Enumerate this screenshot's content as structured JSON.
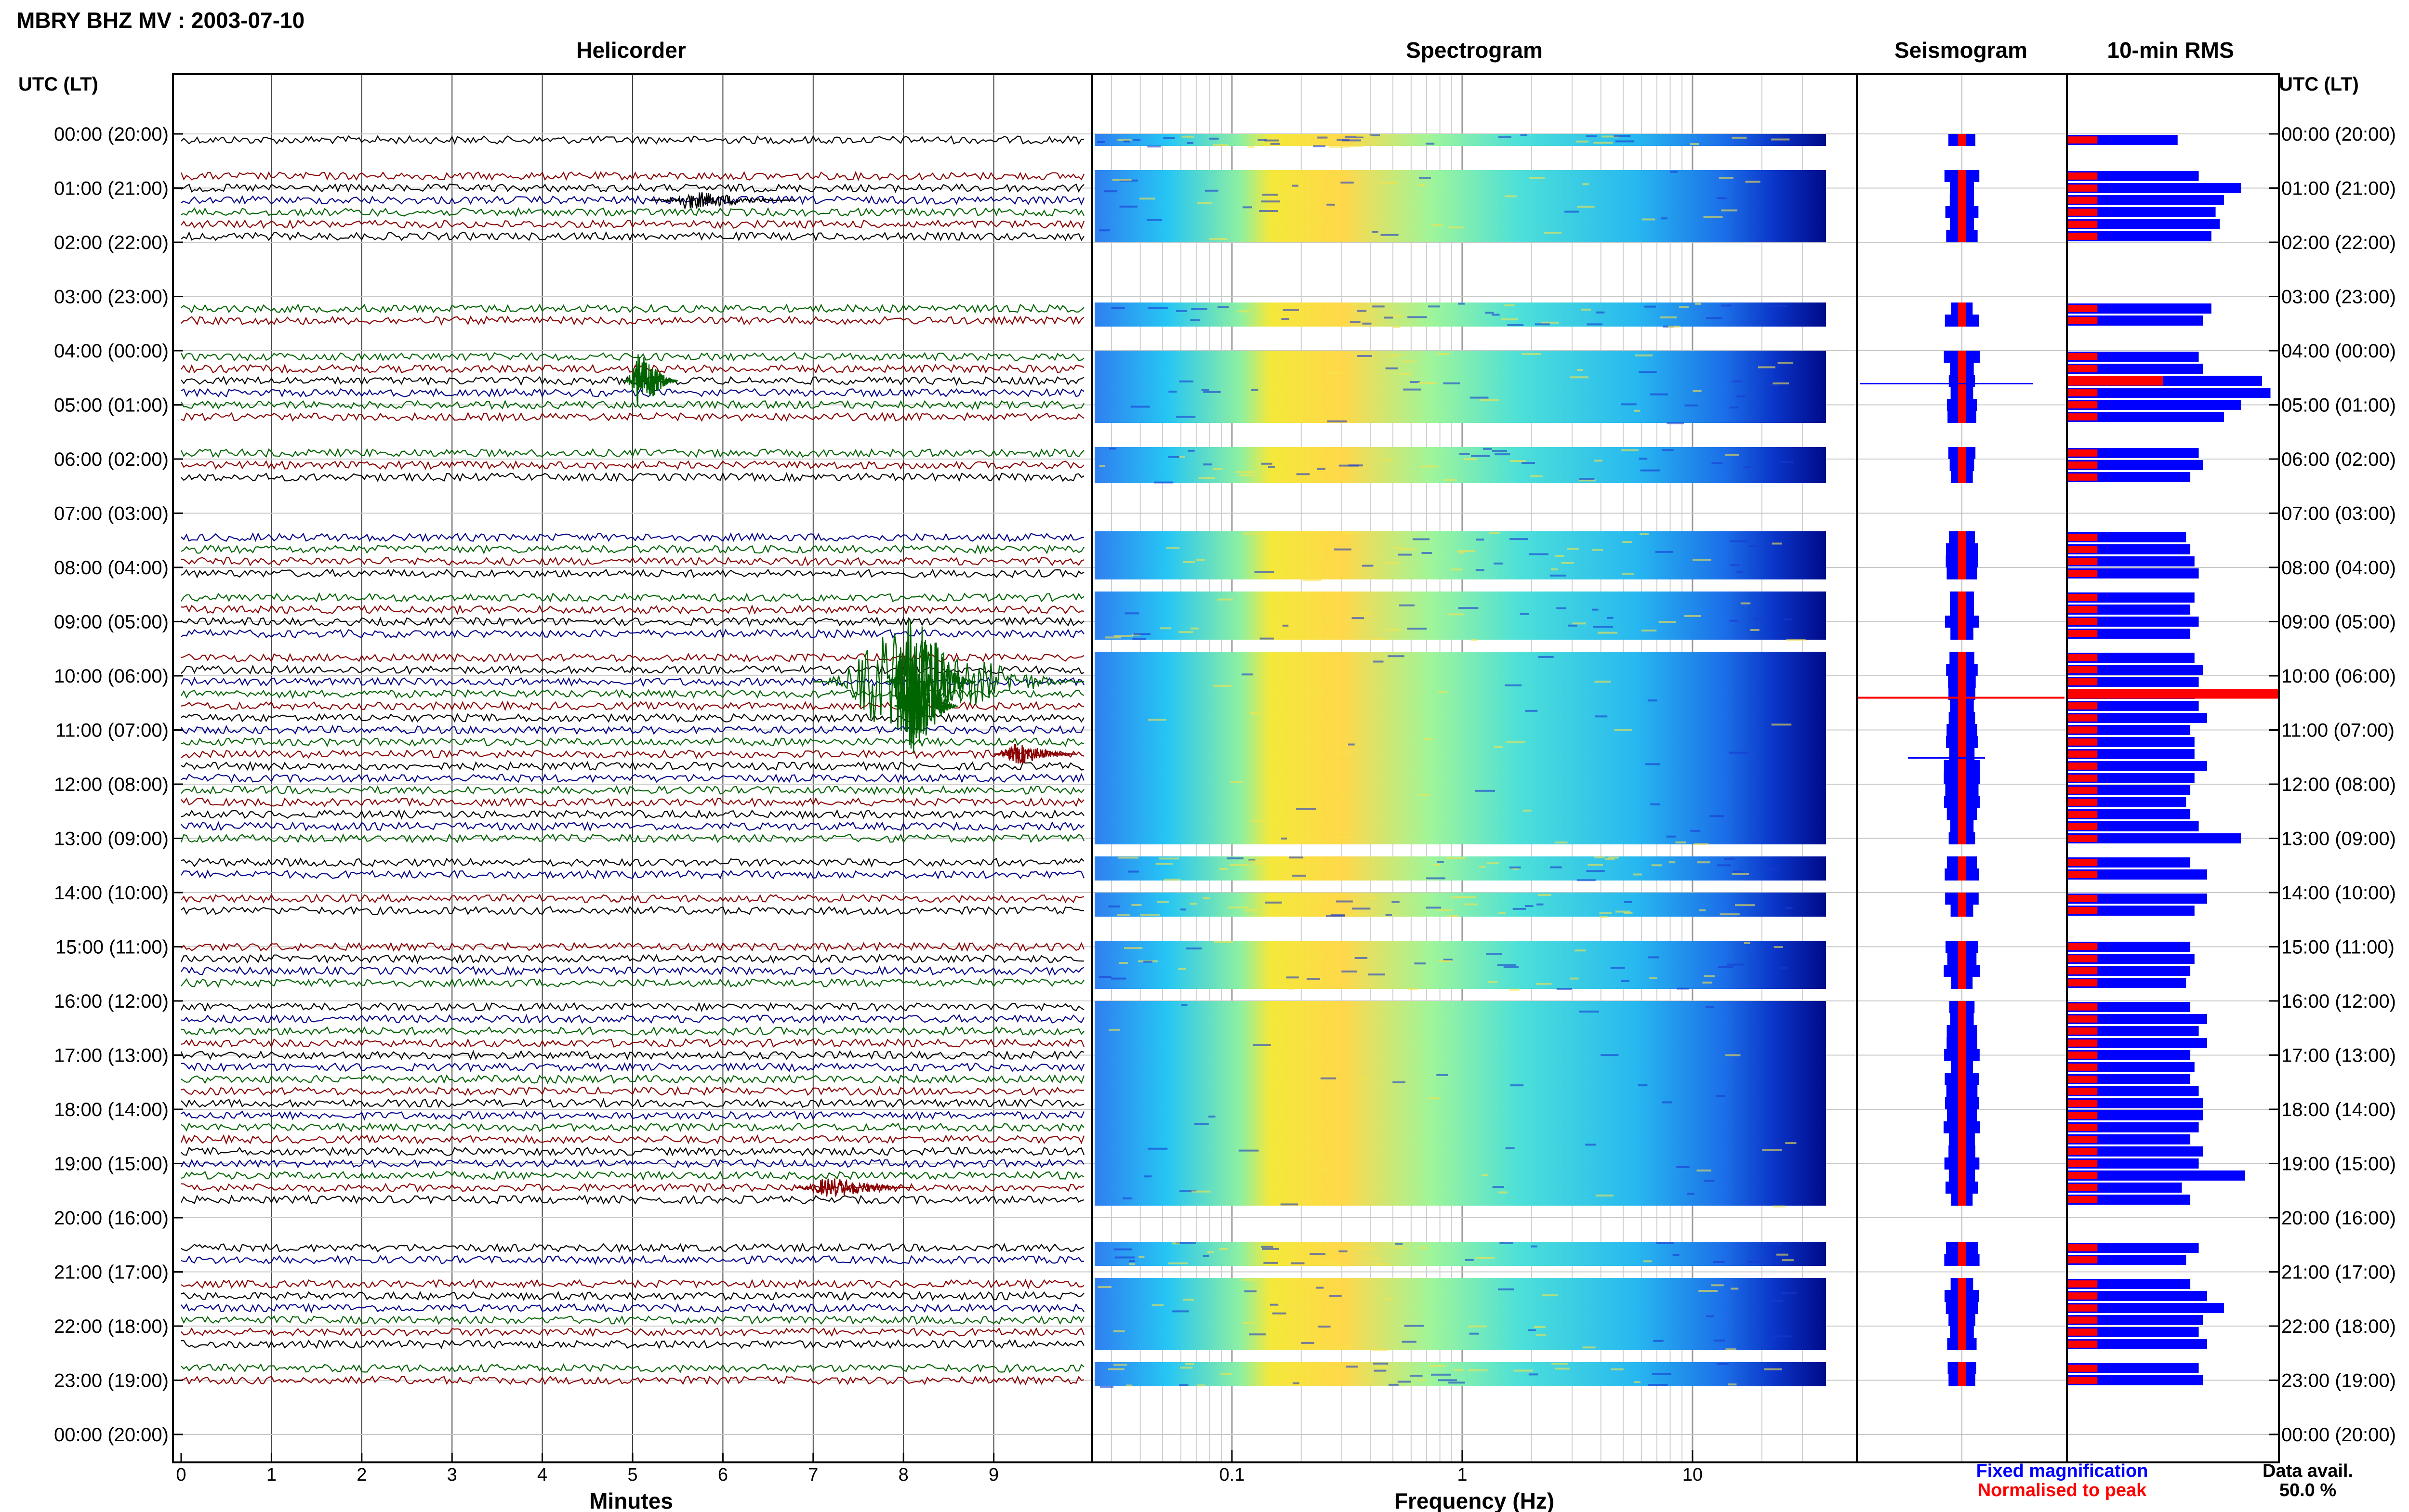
{
  "header": {
    "title": "MBRY BHZ MV : 2003-07-10"
  },
  "panels": {
    "helicorder": "Helicorder",
    "spectrogram": "Spectrogram",
    "seismogram": "Seismogram",
    "rms": "10-min RMS"
  },
  "axes": {
    "time_label_left": "UTC (LT)",
    "time_label_right": "UTC (LT)",
    "minutes_label": "Minutes",
    "frequency_label": "Frequency (Hz)",
    "minute_ticks": [
      "0",
      "1",
      "2",
      "3",
      "4",
      "5",
      "6",
      "7",
      "8",
      "9"
    ],
    "frequency_ticks": [
      "0.1",
      "1",
      "10"
    ]
  },
  "legend": {
    "fixed": "Fixed magnification",
    "normalised": "Normalised to peak",
    "fixed_color": "#0000ff",
    "normalised_color": "#ff0000"
  },
  "availability": {
    "label": "Data avail.",
    "value": "50.0 %"
  },
  "chart_data": {
    "type": "heatmap",
    "hours": [
      "00:00 (20:00)",
      "01:00 (21:00)",
      "02:00 (22:00)",
      "03:00 (23:00)",
      "04:00 (00:00)",
      "05:00 (01:00)",
      "06:00 (02:00)",
      "07:00 (03:00)",
      "08:00 (04:00)",
      "09:00 (05:00)",
      "10:00 (06:00)",
      "11:00 (07:00)",
      "12:00 (08:00)",
      "13:00 (09:00)",
      "14:00 (10:00)",
      "15:00 (11:00)",
      "16:00 (12:00)",
      "17:00 (13:00)",
      "18:00 (14:00)",
      "19:00 (15:00)",
      "20:00 (16:00)",
      "21:00 (17:00)",
      "22:00 (18:00)",
      "23:00 (19:00)",
      "00:00 (20:00)"
    ],
    "trace_colors": [
      "#000000",
      "#00008b",
      "#006400",
      "#8b0000"
    ],
    "segment_slots": [
      0,
      3,
      4,
      5,
      6,
      7,
      8,
      14,
      15,
      18,
      19,
      20,
      21,
      22,
      23,
      26,
      27,
      28,
      33,
      34,
      35,
      36,
      38,
      39,
      40,
      41,
      43,
      44,
      45,
      46,
      47,
      48,
      49,
      50,
      51,
      52,
      53,
      54,
      55,
      56,
      57,
      58,
      60,
      61,
      63,
      64,
      67,
      68,
      69,
      70,
      72,
      73,
      74,
      75,
      76,
      77,
      78,
      79,
      80,
      81,
      82,
      83,
      84,
      85,
      86,
      87,
      88,
      92,
      93,
      95,
      96,
      97,
      98,
      99,
      100,
      102,
      103
    ],
    "rms_blue": [
      0.52,
      0.62,
      0.82,
      0.74,
      0.7,
      0.72,
      0.68,
      0.68,
      0.64,
      0.62,
      0.64,
      0.92,
      0.96,
      0.82,
      0.74,
      0.62,
      0.64,
      0.58,
      0.56,
      0.58,
      0.6,
      0.62,
      0.6,
      0.58,
      0.62,
      0.58,
      0.6,
      0.64,
      0.62,
      0.6,
      0.62,
      0.66,
      0.58,
      0.6,
      0.6,
      0.66,
      0.6,
      0.58,
      0.56,
      0.58,
      0.62,
      0.82,
      0.58,
      0.66,
      0.66,
      0.6,
      0.58,
      0.6,
      0.58,
      0.56,
      0.58,
      0.66,
      0.62,
      0.66,
      0.58,
      0.6,
      0.58,
      0.62,
      0.64,
      0.64,
      0.62,
      0.58,
      0.64,
      0.62,
      0.84,
      0.54,
      0.58,
      0.62,
      0.56,
      0.58,
      0.66,
      0.74,
      0.64,
      0.62,
      0.66,
      0.62,
      0.64
    ],
    "rms_red_slots": [
      7,
      19,
      20,
      33,
      41,
      81,
      87,
      99
    ],
    "spectrogram_freq_range_hz": [
      0.03,
      38
    ],
    "minutes_range": [
      0,
      10
    ]
  }
}
